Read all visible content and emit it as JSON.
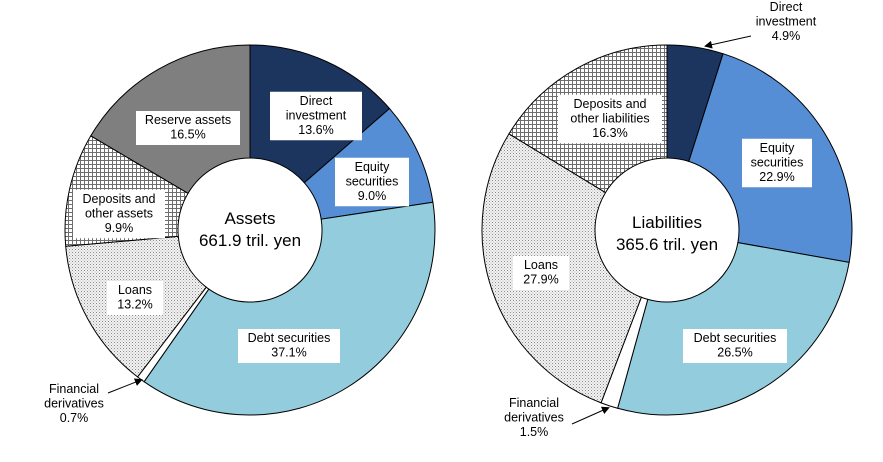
{
  "chart_data": [
    {
      "type": "pie",
      "variant": "donut",
      "center_title": "Assets",
      "center_value": "661.9 tril. yen",
      "series": [
        {
          "name": "Direct investment",
          "label_lines": [
            "Direct",
            "investment"
          ],
          "value_label": "13.6%",
          "value": 13.6,
          "color": "#1c355e",
          "pattern": "solid"
        },
        {
          "name": "Equity securities",
          "label_lines": [
            "Equity",
            "securities"
          ],
          "value_label": "9.0%",
          "value": 9.0,
          "color": "#558ed5",
          "pattern": "solid"
        },
        {
          "name": "Debt securities",
          "label_lines": [
            "Debt securities"
          ],
          "value_label": "37.1%",
          "value": 37.1,
          "color": "#93cddd",
          "pattern": "solid"
        },
        {
          "name": "Financial derivatives",
          "label_lines": [
            "Financial",
            "derivatives"
          ],
          "value_label": "0.7%",
          "value": 0.7,
          "color": "#ffffff",
          "pattern": "solid",
          "callout": true
        },
        {
          "name": "Loans",
          "label_lines": [
            "Loans"
          ],
          "value_label": "13.2%",
          "value": 13.2,
          "color": "#d9d9d9",
          "pattern": "dots"
        },
        {
          "name": "Deposits and other assets",
          "label_lines": [
            "Deposits and",
            "other assets"
          ],
          "value_label": "9.9%",
          "value": 9.9,
          "color": "#e6e6e6",
          "pattern": "grid"
        },
        {
          "name": "Reserve assets",
          "label_lines": [
            "Reserve assets"
          ],
          "value_label": "16.5%",
          "value": 16.5,
          "color": "#7f7f7f",
          "pattern": "solid"
        }
      ]
    },
    {
      "type": "pie",
      "variant": "donut",
      "center_title": "Liabilities",
      "center_value": "365.6 tril. yen",
      "series": [
        {
          "name": "Direct investment",
          "label_lines": [
            "Direct",
            "investment"
          ],
          "value_label": "4.9%",
          "value": 4.9,
          "color": "#1c355e",
          "pattern": "solid",
          "callout": true
        },
        {
          "name": "Equity securities",
          "label_lines": [
            "Equity",
            "securities"
          ],
          "value_label": "22.9%",
          "value": 22.9,
          "color": "#558ed5",
          "pattern": "solid"
        },
        {
          "name": "Debt securities",
          "label_lines": [
            "Debt securities"
          ],
          "value_label": "26.5%",
          "value": 26.5,
          "color": "#93cddd",
          "pattern": "solid"
        },
        {
          "name": "Financial derivatives",
          "label_lines": [
            "Financial",
            "derivatives"
          ],
          "value_label": "1.5%",
          "value": 1.5,
          "color": "#ffffff",
          "pattern": "solid",
          "callout": true
        },
        {
          "name": "Loans",
          "label_lines": [
            "Loans"
          ],
          "value_label": "27.9%",
          "value": 27.9,
          "color": "#d9d9d9",
          "pattern": "dots"
        },
        {
          "name": "Deposits and other liabilities",
          "label_lines": [
            "Deposits and",
            "other liabilities"
          ],
          "value_label": "16.3%",
          "value": 16.3,
          "color": "#e6e6e6",
          "pattern": "grid"
        }
      ]
    }
  ]
}
